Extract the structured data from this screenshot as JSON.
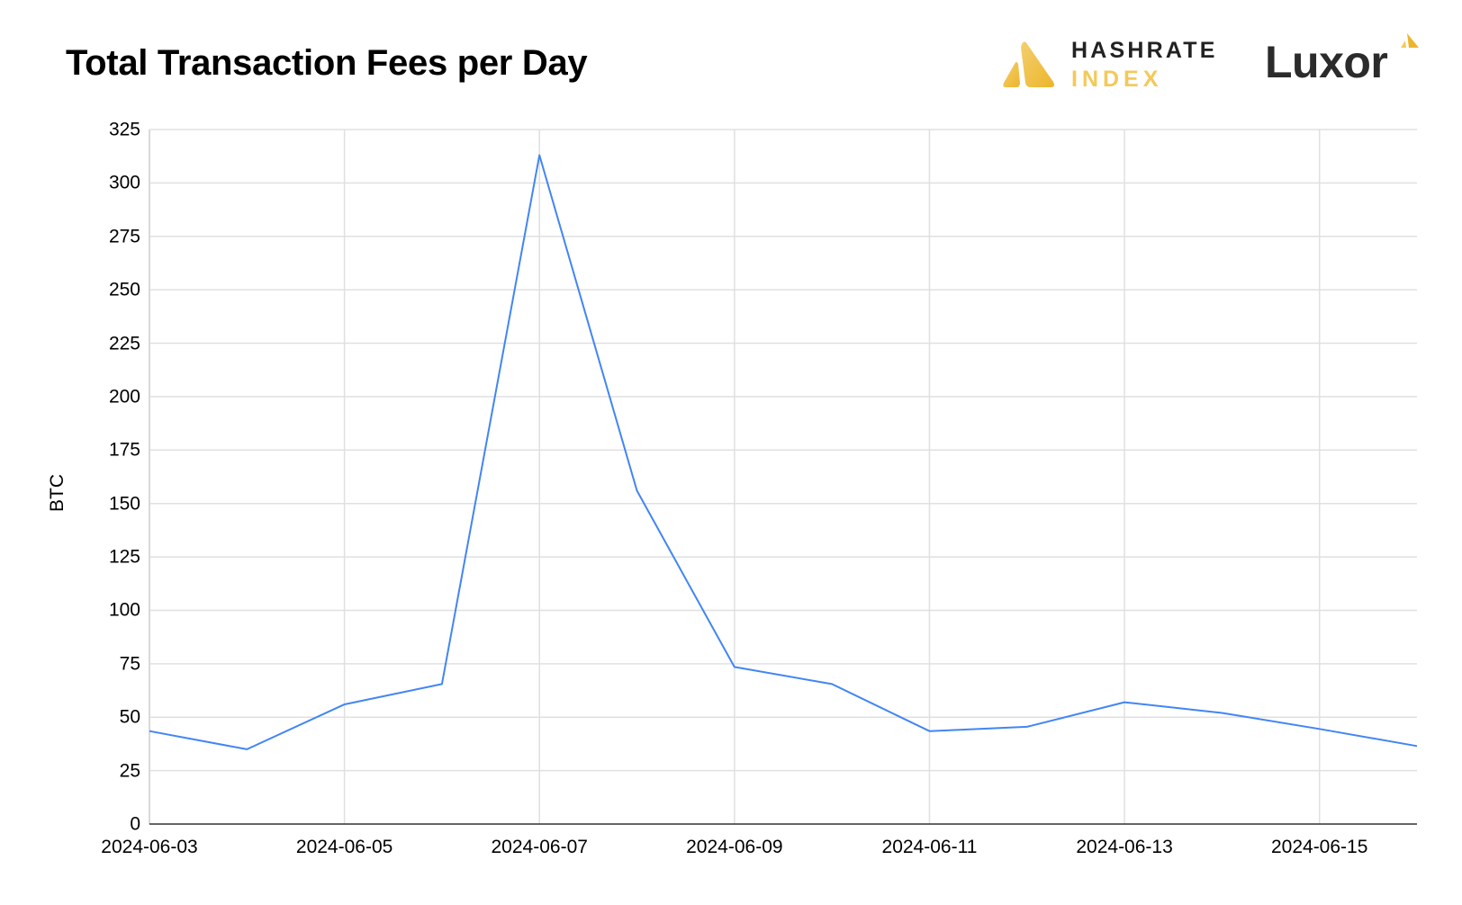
{
  "header": {
    "title": "Total Transaction Fees per Day",
    "logos": {
      "hashrate_line1": "HASHRATE",
      "hashrate_line2": "INDEX",
      "luxor": "Luxor"
    }
  },
  "colors": {
    "line": "#4285F4",
    "grid": "#E0E0E0",
    "axis": "#333333",
    "logo_gold": "#F3C95A",
    "logo_dark": "#222222"
  },
  "chart_data": {
    "type": "line",
    "title": "Total Transaction Fees per Day",
    "xlabel": "",
    "ylabel": "BTC",
    "ylim": [
      0,
      325
    ],
    "yticks": [
      "0",
      "25",
      "50",
      "75",
      "100",
      "125",
      "150",
      "175",
      "200",
      "225",
      "250",
      "275",
      "300",
      "325"
    ],
    "xtick_labels": [
      "2024-06-03",
      "2024-06-05",
      "2024-06-07",
      "2024-06-09",
      "2024-06-11",
      "2024-06-13",
      "2024-06-15"
    ],
    "grid": true,
    "legend": "none",
    "x": [
      "2024-06-03",
      "2024-06-04",
      "2024-06-05",
      "2024-06-06",
      "2024-06-07",
      "2024-06-08",
      "2024-06-09",
      "2024-06-10",
      "2024-06-11",
      "2024-06-12",
      "2024-06-13",
      "2024-06-14",
      "2024-06-15",
      "2024-06-16"
    ],
    "series": [
      {
        "name": "Total Transaction Fees (BTC)",
        "values": [
          43.5,
          35,
          56,
          65.5,
          313,
          156,
          73.5,
          65.5,
          43.5,
          45.5,
          57,
          52,
          44.5,
          36.5
        ]
      }
    ]
  }
}
